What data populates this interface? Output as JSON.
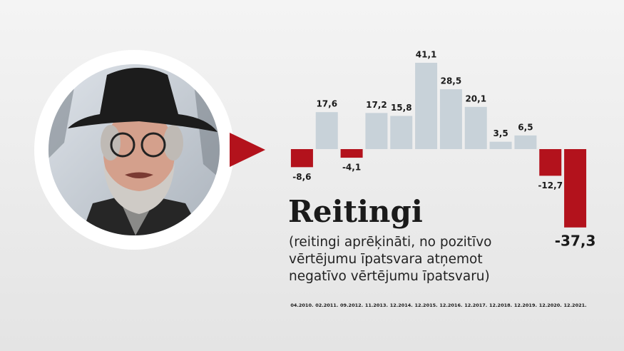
{
  "chart_data": {
    "type": "bar",
    "title": "Reitingi",
    "subtitle": [
      "(reitingi aprēķināti, no pozitīvo",
      "vērtējumu īpatsvara atņemot",
      "negatīvo vērtējumu īpatsvaru)"
    ],
    "categories": [
      "04.2010.",
      "02.2011.",
      "09.2012.",
      "11.2013.",
      "12.2014.",
      "12.2015.",
      "12.2016.",
      "12.2017.",
      "12.2018.",
      "12.2019.",
      "12.2020.",
      "12.2021."
    ],
    "values": [
      -8.6,
      17.6,
      -4.1,
      17.2,
      15.8,
      41.1,
      28.5,
      20.1,
      3.5,
      6.5,
      -12.7,
      -37.3
    ],
    "value_labels": [
      "-8,6",
      "17,6",
      "-4,1",
      "17,2",
      "15,8",
      "41,1",
      "28,5",
      "20,1",
      "3,5",
      "6,5",
      "-12,7",
      "-37,3"
    ],
    "positive_color": "#c8d2d9",
    "negative_color": "#b3121c"
  }
}
